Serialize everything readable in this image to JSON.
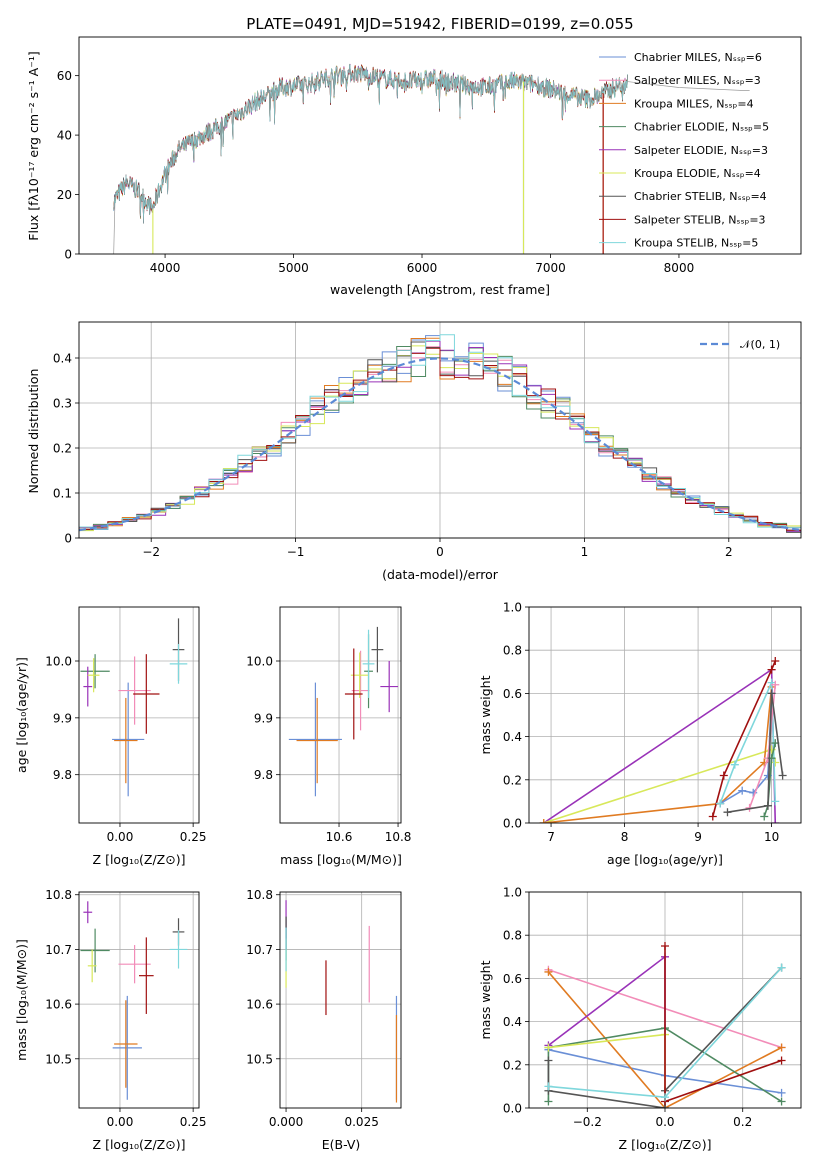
{
  "figure": {
    "title": "PLATE=0491, MJD=51942, FIBERID=0199, z=0.055"
  },
  "colors": [
    "#6a8fd6",
    "#f28cb8",
    "#e07b22",
    "#4f8a62",
    "#9932b8",
    "#d8e85a",
    "#555555",
    "#a01010",
    "#7fd7dc"
  ],
  "chart_data": [
    {
      "type": "line",
      "name": "spectrum",
      "xlabel": "wavelength [Angstrom, rest frame]",
      "ylabel": "Flux [fλ10⁻¹⁷ erg cm⁻² s⁻¹ A⁻¹]",
      "xlim": [
        3330,
        8950
      ],
      "ylim": [
        0,
        73
      ],
      "xticks": [
        4000,
        5000,
        6000,
        7000,
        8000
      ],
      "yticks": [
        0,
        20,
        40,
        60
      ],
      "grid": false,
      "legend_position": "top-right",
      "legend": [
        "Chabrier MILES, Nₛₛₚ=6",
        "Salpeter MILES, Nₛₛₚ=3",
        "Kroupa MILES, Nₛₛₚ=4",
        "Chabrier ELODIE, Nₛₛₚ=5",
        "Salpeter ELODIE, Nₛₛₚ=3",
        "Kroupa ELODIE, Nₛₛₚ=4",
        "Chabrier STELIB, Nₛₛₚ=4",
        "Salpeter STELIB, Nₛₛₚ=3",
        "Kroupa STELIB, Nₛₛₚ=5"
      ],
      "continuum": [
        [
          3600,
          18
        ],
        [
          3700,
          24
        ],
        [
          3800,
          21
        ],
        [
          3900,
          15
        ],
        [
          4000,
          27
        ],
        [
          4100,
          35
        ],
        [
          4300,
          40
        ],
        [
          4500,
          45
        ],
        [
          4700,
          51
        ],
        [
          4900,
          56
        ],
        [
          5100,
          57
        ],
        [
          5300,
          60
        ],
        [
          5500,
          61
        ],
        [
          5700,
          59
        ],
        [
          5900,
          58
        ],
        [
          6100,
          59
        ],
        [
          6300,
          57
        ],
        [
          6500,
          56
        ],
        [
          6700,
          58
        ],
        [
          6900,
          57
        ],
        [
          7100,
          54
        ],
        [
          7300,
          52
        ],
        [
          7500,
          56
        ],
        [
          7600,
          58
        ]
      ],
      "data_trace": [
        [
          3600,
          0
        ],
        [
          3610,
          18
        ],
        [
          7600,
          58
        ],
        [
          8000,
          56
        ],
        [
          8500,
          55
        ],
        [
          8550,
          55
        ]
      ]
    },
    {
      "type": "step",
      "name": "residual-histogram",
      "xlabel": "(data-model)/error",
      "ylabel": "Normed distribution",
      "xlim": [
        -2.5,
        2.5
      ],
      "ylim": [
        0,
        0.48
      ],
      "xticks": [
        -2,
        -1,
        0,
        1,
        2
      ],
      "yticks": [
        0.0,
        0.1,
        0.2,
        0.3,
        0.4
      ],
      "grid": true,
      "bin_width": 0.1,
      "legend_position": "top-right",
      "reference_label": "𝒩(0, 1)"
    },
    {
      "type": "scatter",
      "name": "age-vs-metallicity",
      "xlabel": "Z [log₁₀(Z/Z⊙)]",
      "ylabel": "age  [log₁₀(age/yr)]",
      "xlim": [
        -0.14,
        0.27
      ],
      "ylim": [
        9.715,
        10.095
      ],
      "xticks": [
        0.0,
        0.25
      ],
      "xticklabels": [
        "0.00",
        "0.25"
      ],
      "yticks": [
        9.8,
        9.9,
        10.0
      ],
      "yticklabels": [
        "9.8",
        "9.9",
        "10.0"
      ],
      "grid": true,
      "points": [
        {
          "c": 0,
          "x": 0.028,
          "y": 9.862,
          "xerr": 0.055,
          "yerr": 0.1
        },
        {
          "c": 1,
          "x": 0.05,
          "y": 9.948,
          "xerr": 0.055,
          "yerr": 0.06
        },
        {
          "c": 2,
          "x": 0.02,
          "y": 9.86,
          "xerr": 0.04,
          "yerr": 0.075
        },
        {
          "c": 3,
          "x": -0.085,
          "y": 9.982,
          "xerr": 0.05,
          "yerr": 0.03
        },
        {
          "c": 4,
          "x": -0.11,
          "y": 9.955,
          "xerr": 0.015,
          "yerr": 0.035
        },
        {
          "c": 5,
          "x": -0.09,
          "y": 9.975,
          "xerr": 0.02,
          "yerr": 0.03
        },
        {
          "c": 6,
          "x": 0.2,
          "y": 10.02,
          "xerr": 0.02,
          "yerr": 0.055
        },
        {
          "c": 7,
          "x": 0.09,
          "y": 9.942,
          "xerr": 0.045,
          "yerr": 0.07
        },
        {
          "c": 8,
          "x": 0.2,
          "y": 9.995,
          "xerr": 0.03,
          "yerr": 0.035
        }
      ]
    },
    {
      "type": "scatter",
      "name": "age-vs-mass",
      "xlabel": "mass [log₁₀(M/M⊙)]",
      "ylabel": "",
      "xlim": [
        10.4,
        10.81
      ],
      "ylim": [
        9.715,
        10.095
      ],
      "xticks": [
        10.6,
        10.8
      ],
      "xticklabels": [
        "10.6",
        "10.8"
      ],
      "yticks": [
        9.8,
        9.9,
        10.0
      ],
      "yticklabels": [
        "9.8",
        "9.9",
        "10.0"
      ],
      "grid": true,
      "points": [
        {
          "c": 0,
          "x": 10.52,
          "y": 9.862,
          "xerr": 0.09,
          "yerr": 0.1
        },
        {
          "c": 1,
          "x": 10.673,
          "y": 9.948,
          "xerr": 0.03,
          "yerr": 0.07
        },
        {
          "c": 2,
          "x": 10.526,
          "y": 9.86,
          "xerr": 0.07,
          "yerr": 0.075
        },
        {
          "c": 3,
          "x": 10.7,
          "y": 9.982,
          "xerr": 0.015,
          "yerr": 0.065
        },
        {
          "c": 4,
          "x": 10.77,
          "y": 9.955,
          "xerr": 0.03,
          "yerr": 0.045
        },
        {
          "c": 5,
          "x": 10.67,
          "y": 9.975,
          "xerr": 0.03,
          "yerr": 0.04
        },
        {
          "c": 6,
          "x": 10.73,
          "y": 10.02,
          "xerr": 0.02,
          "yerr": 0.04
        },
        {
          "c": 7,
          "x": 10.65,
          "y": 9.942,
          "xerr": 0.03,
          "yerr": 0.08
        },
        {
          "c": 8,
          "x": 10.7,
          "y": 9.995,
          "xerr": 0.02,
          "yerr": 0.06
        }
      ]
    },
    {
      "type": "line",
      "name": "mass-weight-vs-age",
      "xlabel": "age  [log₁₀(age/yr)]",
      "ylabel": "mass weight",
      "xlim": [
        6.7,
        10.4
      ],
      "ylim": [
        0,
        1.0
      ],
      "xticks": [
        7,
        8,
        9,
        10
      ],
      "yticks": [
        0.0,
        0.2,
        0.4,
        0.6,
        0.8,
        1.0
      ],
      "yticklabels": [
        "0.0",
        "0.2",
        "0.4",
        "0.6",
        "0.8",
        "1.0"
      ],
      "grid": true,
      "series": [
        {
          "c": 4,
          "pts": [
            [
              6.9,
              0.0
            ],
            [
              10.0,
              0.71
            ],
            [
              10.05,
              0.0
            ]
          ]
        },
        {
          "c": 5,
          "pts": [
            [
              6.9,
              0.0
            ],
            [
              10.0,
              0.34
            ],
            [
              10.05,
              0.28
            ]
          ]
        },
        {
          "c": 2,
          "pts": [
            [
              6.9,
              0.0
            ],
            [
              9.3,
              0.09
            ],
            [
              9.9,
              0.28
            ],
            [
              10.0,
              0.63
            ]
          ]
        },
        {
          "c": 7,
          "pts": [
            [
              9.2,
              0.03
            ],
            [
              9.35,
              0.22
            ],
            [
              10.0,
              0.71
            ],
            [
              10.05,
              0.75
            ]
          ]
        },
        {
          "c": 0,
          "pts": [
            [
              9.3,
              0.09
            ],
            [
              9.6,
              0.15
            ],
            [
              9.75,
              0.14
            ],
            [
              9.95,
              0.22
            ],
            [
              10.0,
              0.6
            ]
          ]
        },
        {
          "c": 8,
          "pts": [
            [
              9.3,
              0.09
            ],
            [
              9.5,
              0.27
            ],
            [
              10.0,
              0.65
            ],
            [
              10.05,
              0.1
            ]
          ]
        },
        {
          "c": 1,
          "pts": [
            [
              9.7,
              0.07
            ],
            [
              9.95,
              0.3
            ],
            [
              10.05,
              0.64
            ]
          ]
        },
        {
          "c": 3,
          "pts": [
            [
              9.9,
              0.03
            ],
            [
              9.95,
              0.08
            ],
            [
              10.0,
              0.3
            ],
            [
              10.05,
              0.37
            ]
          ]
        },
        {
          "c": 6,
          "pts": [
            [
              9.4,
              0.05
            ],
            [
              9.95,
              0.08
            ],
            [
              10.0,
              0.6
            ],
            [
              10.15,
              0.22
            ]
          ]
        }
      ]
    },
    {
      "type": "scatter",
      "name": "mass-vs-metallicity",
      "xlabel": "Z [log₁₀(Z/Z⊙)]",
      "ylabel": "mass [log₁₀(M/M⊙)]",
      "xlim": [
        -0.14,
        0.27
      ],
      "ylim": [
        10.41,
        10.805
      ],
      "xticks": [
        0.0,
        0.25
      ],
      "xticklabels": [
        "0.00",
        "0.25"
      ],
      "yticks": [
        10.5,
        10.6,
        10.7,
        10.8
      ],
      "yticklabels": [
        "10.5",
        "10.6",
        "10.7",
        "10.8"
      ],
      "grid": true,
      "points": [
        {
          "c": 0,
          "x": 0.025,
          "y": 10.52,
          "xerr": 0.05,
          "yerr": 0.095
        },
        {
          "c": 1,
          "x": 0.05,
          "y": 10.673,
          "xerr": 0.055,
          "yerr": 0.035
        },
        {
          "c": 2,
          "x": 0.02,
          "y": 10.527,
          "xerr": 0.04,
          "yerr": 0.08
        },
        {
          "c": 3,
          "x": -0.085,
          "y": 10.698,
          "xerr": 0.05,
          "yerr": 0.04
        },
        {
          "c": 4,
          "x": -0.11,
          "y": 10.768,
          "xerr": 0.015,
          "yerr": 0.02
        },
        {
          "c": 5,
          "x": -0.095,
          "y": 10.67,
          "xerr": 0.015,
          "yerr": 0.03
        },
        {
          "c": 6,
          "x": 0.2,
          "y": 10.732,
          "xerr": 0.02,
          "yerr": 0.025
        },
        {
          "c": 7,
          "x": 0.09,
          "y": 10.652,
          "xerr": 0.025,
          "yerr": 0.07
        },
        {
          "c": 8,
          "x": 0.2,
          "y": 10.7,
          "xerr": 0.03,
          "yerr": 0.035
        }
      ]
    },
    {
      "type": "scatter",
      "name": "mass-vs-extinction",
      "xlabel": "E(B-V)",
      "ylabel": "",
      "xlim": [
        -0.002,
        0.038
      ],
      "ylim": [
        10.41,
        10.805
      ],
      "xticks": [
        0.0,
        0.025
      ],
      "xticklabels": [
        "0.000",
        "0.025"
      ],
      "yticks": [
        10.5,
        10.6,
        10.7,
        10.8
      ],
      "yticklabels": [
        "10.5",
        "10.6",
        "10.7",
        "10.8"
      ],
      "grid": true,
      "points": [
        {
          "c": 0,
          "x": 0.0365,
          "y": 10.52,
          "xerr": 0,
          "yerr": 0.095
        },
        {
          "c": 1,
          "x": 0.0275,
          "y": 10.673,
          "xerr": 0,
          "yerr": 0.07
        },
        {
          "c": 2,
          "x": 0.0365,
          "y": 10.5,
          "xerr": 0,
          "yerr": 0.08
        },
        {
          "c": 3,
          "x": 0.0,
          "y": 10.72,
          "xerr": 0,
          "yerr": 0.04
        },
        {
          "c": 4,
          "x": 0.0,
          "y": 10.755,
          "xerr": 0,
          "yerr": 0.035
        },
        {
          "c": 5,
          "x": 0.0,
          "y": 10.665,
          "xerr": 0,
          "yerr": 0.035
        },
        {
          "c": 6,
          "x": 0.0,
          "y": 10.73,
          "xerr": 0,
          "yerr": 0.03
        },
        {
          "c": 7,
          "x": 0.0132,
          "y": 10.63,
          "xerr": 0,
          "yerr": 0.05
        },
        {
          "c": 8,
          "x": 0.0,
          "y": 10.7,
          "xerr": 0,
          "yerr": 0.04
        }
      ]
    },
    {
      "type": "line",
      "name": "mass-weight-vs-metallicity",
      "xlabel": "Z [log₁₀(Z/Z⊙)]",
      "ylabel": "mass weight",
      "xlim": [
        -0.35,
        0.35
      ],
      "ylim": [
        0,
        1.0
      ],
      "xticks": [
        -0.2,
        0.0,
        0.2
      ],
      "xticklabels": [
        "−0.2",
        "0.0",
        "0.2"
      ],
      "yticks": [
        0.0,
        0.2,
        0.4,
        0.6,
        0.8,
        1.0
      ],
      "yticklabels": [
        "0.0",
        "0.2",
        "0.4",
        "0.6",
        "0.8",
        "1.0"
      ],
      "grid": true,
      "series": [
        {
          "c": 0,
          "pts": [
            [
              -0.3,
              0.27
            ],
            [
              0.0,
              0.15
            ],
            [
              0.3,
              0.07
            ]
          ]
        },
        {
          "c": 1,
          "pts": [
            [
              -0.3,
              0.64
            ],
            [
              0.3,
              0.28
            ]
          ]
        },
        {
          "c": 2,
          "pts": [
            [
              -0.3,
              0.63
            ],
            [
              0.0,
              0.0
            ],
            [
              0.3,
              0.28
            ]
          ]
        },
        {
          "c": 3,
          "pts": [
            [
              -0.3,
              0.03
            ],
            [
              -0.3,
              0.28
            ],
            [
              0.0,
              0.37
            ],
            [
              0.3,
              0.03
            ]
          ]
        },
        {
          "c": 4,
          "pts": [
            [
              -0.3,
              0.29
            ],
            [
              0.0,
              0.7
            ],
            [
              0.0,
              0.0
            ]
          ]
        },
        {
          "c": 5,
          "pts": [
            [
              -0.3,
              0.28
            ],
            [
              0.0,
              0.34
            ],
            [
              0.0,
              0.0
            ]
          ]
        },
        {
          "c": 6,
          "pts": [
            [
              -0.3,
              0.22
            ],
            [
              -0.3,
              0.08
            ],
            [
              0.0,
              0.0
            ],
            [
              0.0,
              0.08
            ],
            [
              0.3,
              0.65
            ]
          ]
        },
        {
          "c": 7,
          "pts": [
            [
              0.0,
              0.75
            ],
            [
              0.0,
              0.03
            ],
            [
              0.3,
              0.22
            ]
          ]
        },
        {
          "c": 8,
          "pts": [
            [
              -0.3,
              0.1
            ],
            [
              0.0,
              0.05
            ],
            [
              0.3,
              0.65
            ]
          ]
        }
      ]
    }
  ]
}
